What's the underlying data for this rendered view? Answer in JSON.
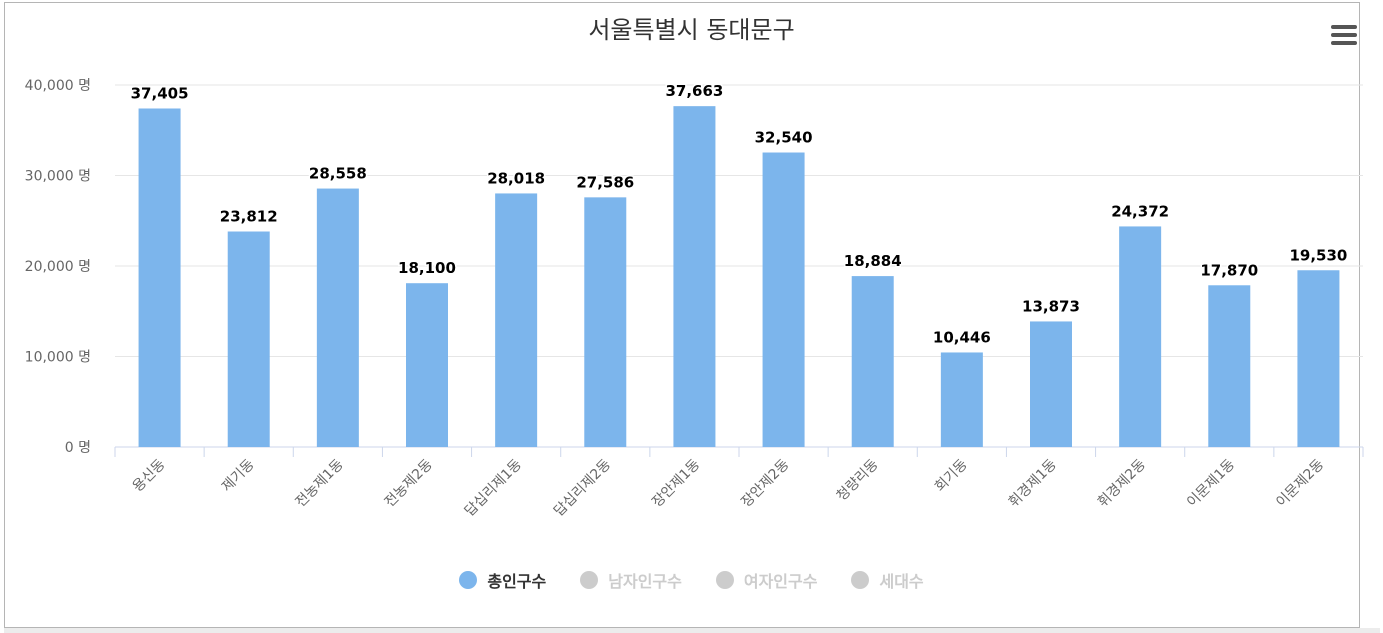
{
  "header": {
    "title": "서울특별시 동대문구"
  },
  "menu": {
    "icon": "hamburger-menu-icon"
  },
  "colors": {
    "bar": "#7cb5ec",
    "inactive": "#cccccc",
    "grid": "#e6e6e6",
    "axis": "#ccd6eb",
    "label": "#666666"
  },
  "legend": [
    {
      "label": "총인구수",
      "active": true
    },
    {
      "label": "남자인구수",
      "active": false
    },
    {
      "label": "여자인구수",
      "active": false
    },
    {
      "label": "세대수",
      "active": false
    }
  ],
  "chart_data": {
    "type": "bar",
    "title": "서울특별시 동대문구",
    "categories": [
      "용신동",
      "제기동",
      "전농제1동",
      "전농제2동",
      "답십리제1동",
      "답십리제2동",
      "장안제1동",
      "장안제2동",
      "청량리동",
      "회기동",
      "휘경제1동",
      "휘경제2동",
      "이문제1동",
      "이문제2동"
    ],
    "series": [
      {
        "name": "총인구수",
        "values": [
          37405,
          23812,
          28558,
          18100,
          28018,
          27586,
          37663,
          32540,
          18884,
          10446,
          13873,
          24372,
          17870,
          19530
        ]
      }
    ],
    "data_labels": [
      "37,405",
      "23,812",
      "28,558",
      "18,100",
      "28,018",
      "27,586",
      "37,663",
      "32,540",
      "18,884",
      "10,446",
      "13,873",
      "24,372",
      "17,870",
      "19,530"
    ],
    "y_ticks": [
      0,
      10000,
      20000,
      30000,
      40000
    ],
    "y_tick_labels": [
      "0 명",
      "10,000 명",
      "20,000 명",
      "30,000 명",
      "40,000 명"
    ],
    "ylim": [
      0,
      40000
    ],
    "grid": true,
    "legend_position": "bottom-center",
    "xlabel": "",
    "ylabel": ""
  }
}
